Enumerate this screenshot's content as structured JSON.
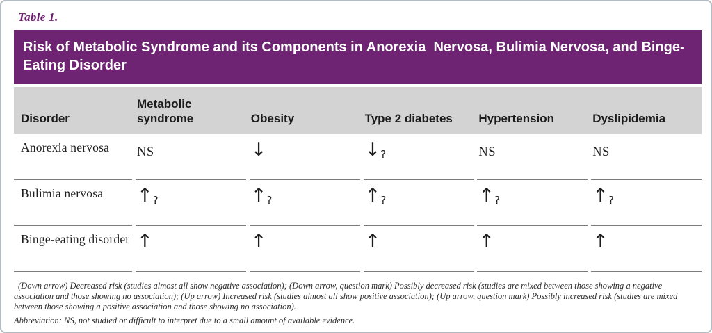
{
  "table_label": "Table 1.",
  "title": "Risk of Metabolic Syndrome and its Components in Anorexia  Nervosa, Bulimia Nervosa, and Binge-Eating Disorder",
  "colors": {
    "band_purple": "#6e2472",
    "label_purple": "#6d1e70",
    "header_gray": "#d3d3d3",
    "rule_gray": "#7d7d7d",
    "frame_border": "#b4bcc1"
  },
  "header": {
    "columns": [
      "Disorder",
      "Metabolic\nsyndrome",
      "Obesity",
      "Type 2 diabetes",
      "Hypertension",
      "Dyslipidemia"
    ]
  },
  "rows": [
    {
      "disorder": "Anorexia nervosa",
      "cells": [
        {
          "label": "NS",
          "arrow": "",
          "q": ""
        },
        {
          "label": "",
          "arrow": "↓",
          "q": ""
        },
        {
          "label": "",
          "arrow": "↓",
          "q": "?"
        },
        {
          "label": "NS",
          "arrow": "",
          "q": ""
        },
        {
          "label": "NS",
          "arrow": "",
          "q": ""
        }
      ]
    },
    {
      "disorder": "Bulimia nervosa",
      "cells": [
        {
          "label": "",
          "arrow": "↑",
          "q": "?"
        },
        {
          "label": "",
          "arrow": "↑",
          "q": "?"
        },
        {
          "label": "",
          "arrow": "↑",
          "q": "?"
        },
        {
          "label": "",
          "arrow": "↑",
          "q": "?"
        },
        {
          "label": "",
          "arrow": "↑",
          "q": "?"
        }
      ]
    },
    {
      "disorder": "Binge-eating disorder",
      "cells": [
        {
          "label": "",
          "arrow": "↑",
          "q": ""
        },
        {
          "label": "",
          "arrow": "↑",
          "q": ""
        },
        {
          "label": "",
          "arrow": "↑",
          "q": ""
        },
        {
          "label": "",
          "arrow": "↑",
          "q": ""
        },
        {
          "label": "",
          "arrow": "↑",
          "q": ""
        }
      ]
    }
  ],
  "footnotes": {
    "legend": "(Down arrow) Decreased risk (studies almost all show negative association); (Down arrow, question mark) Possibly decreased risk (studies are mixed between those showing a negative association and those showing no association); (Up arrow) Increased risk (studies almost all show positive association); (Up arrow, question mark) Possibly increased risk (studies are mixed between those showing a positive association and those showing no association).",
    "abbreviation": "Abbreviation: NS, not studied or difficult to interpret due to a small amount of available evidence."
  }
}
